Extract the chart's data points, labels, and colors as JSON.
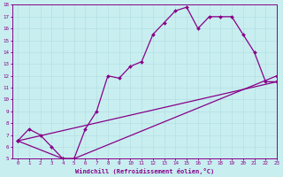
{
  "xlabel": "Windchill (Refroidissement éolien,°C)",
  "bg_color": "#c8eef0",
  "grid_color": "#b0dde0",
  "line_color": "#880088",
  "line1_x": [
    0,
    1,
    2,
    3,
    4,
    5,
    6,
    7,
    8,
    9,
    10,
    11,
    12,
    13,
    14,
    15,
    16,
    17,
    18,
    19,
    20,
    21,
    22,
    23
  ],
  "line1_y": [
    6.5,
    7.5,
    7.0,
    6.0,
    5.0,
    5.0,
    7.5,
    9.0,
    12.0,
    11.8,
    12.8,
    13.2,
    15.5,
    16.5,
    17.5,
    17.8,
    16.0,
    17.0,
    17.0,
    17.0,
    15.5,
    14.0,
    11.5,
    11.5
  ],
  "line2_x": [
    0,
    23
  ],
  "line2_y": [
    6.5,
    11.5
  ],
  "line3_x": [
    0,
    4,
    5,
    23
  ],
  "line3_y": [
    6.5,
    5.0,
    5.0,
    12.0
  ],
  "xlim": [
    -0.5,
    23
  ],
  "ylim": [
    5,
    18
  ],
  "xticks": [
    0,
    1,
    2,
    3,
    4,
    5,
    6,
    7,
    8,
    9,
    10,
    11,
    12,
    13,
    14,
    15,
    16,
    17,
    18,
    19,
    20,
    21,
    22,
    23
  ],
  "yticks": [
    5,
    6,
    7,
    8,
    9,
    10,
    11,
    12,
    13,
    14,
    15,
    16,
    17,
    18
  ],
  "marker_size": 2.0,
  "line_width": 0.9,
  "tick_fontsize": 4.2,
  "xlabel_fontsize": 5.0
}
